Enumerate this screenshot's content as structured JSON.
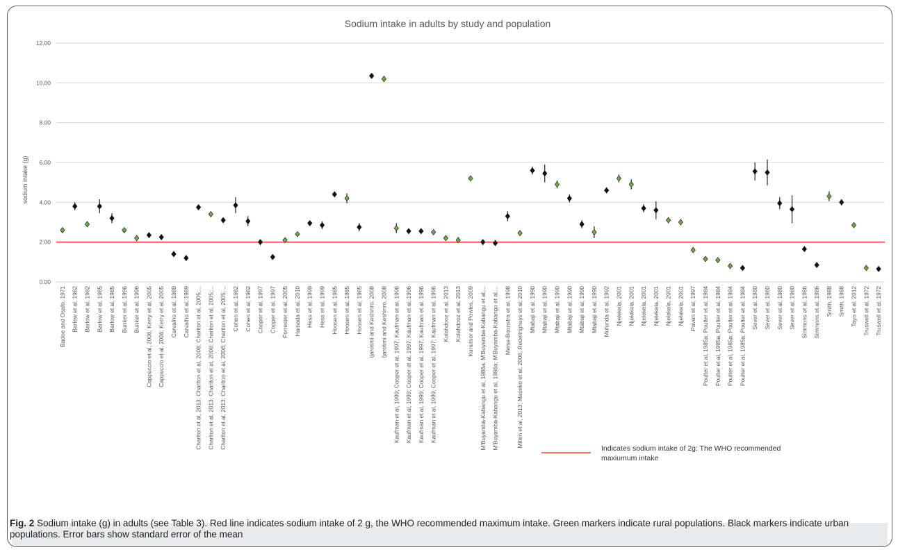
{
  "chart_data": {
    "type": "scatter",
    "title": "Sodium intake in adults by study and population",
    "ylabel": "sodium intake (g)",
    "xlabel": "",
    "ylim": [
      0,
      12
    ],
    "yticks": [
      "0.00",
      "2.00",
      "4.00",
      "6.00",
      "8.00",
      "10.00",
      "12.00"
    ],
    "grid": true,
    "reference_line": {
      "value": 2.0,
      "color": "#ff3b3b",
      "label": "Indicates sodium intake of 2g: The WHO recommended maxiumum intake"
    },
    "marker_colors": {
      "rural": "#70a84a",
      "urban": "#111111"
    },
    "points": [
      {
        "label": "Badoe and Osafo, 1971",
        "y": 2.6,
        "err": 0.05,
        "pop": "rural"
      },
      {
        "label": "Barlow et al, 1982",
        "y": 3.8,
        "err": 0.2,
        "pop": "urban"
      },
      {
        "label": "Barlow et al, 1982",
        "y": 2.9,
        "err": 0.1,
        "pop": "rural"
      },
      {
        "label": "Barlow et al, 1985",
        "y": 3.8,
        "err": 0.35,
        "pop": "urban"
      },
      {
        "label": "Barlow et al, 1985",
        "y": 3.2,
        "err": 0.25,
        "pop": "urban"
      },
      {
        "label": "Bunker et al, 1996",
        "y": 2.6,
        "err": 0.05,
        "pop": "rural"
      },
      {
        "label": "Bunker et al, 1996",
        "y": 2.2,
        "err": 0.15,
        "pop": "rural"
      },
      {
        "label": "Cappuccio et al, 2006; Kerry et al, 2005",
        "y": 2.35,
        "err": 0.05,
        "pop": "urban"
      },
      {
        "label": "Cappuccio et al, 2006; Kerry et al, 2005",
        "y": 2.25,
        "err": 0.05,
        "pop": "urban"
      },
      {
        "label": "Carvalho et al, 1989",
        "y": 1.4,
        "err": 0.03,
        "pop": "urban"
      },
      {
        "label": "Carvalho et al, 1989",
        "y": 1.2,
        "err": 0.03,
        "pop": "urban"
      },
      {
        "label": "Charlton et al, 2013; Charlton et al, 2008; Charlton et al, 2005;...",
        "y": 3.75,
        "err": 0.12,
        "pop": "urban"
      },
      {
        "label": "Charlton et al, 2013; Charlton et al, 2008; Charlton et al, 2005;...",
        "y": 3.4,
        "err": 0.05,
        "pop": "rural"
      },
      {
        "label": "Charlton et al, 2013; Charlton et al, 2008; Charlton et al, 2005;...",
        "y": 3.1,
        "err": 0.05,
        "pop": "urban"
      },
      {
        "label": "Cohen et al, 1982",
        "y": 3.85,
        "err": 0.4,
        "pop": "urban"
      },
      {
        "label": "Cohen et al, 1982",
        "y": 3.05,
        "err": 0.25,
        "pop": "urban"
      },
      {
        "label": "Cooper et al, 1997",
        "y": 2.0,
        "err": 0.03,
        "pop": "urban"
      },
      {
        "label": "Cooper et al, 1997",
        "y": 1.25,
        "err": 0.03,
        "pop": "urban"
      },
      {
        "label": "Forrester et al, 2005",
        "y": 2.1,
        "err": 0.1,
        "pop": "rural"
      },
      {
        "label": "Hamada et al, 2010",
        "y": 2.4,
        "err": 0.05,
        "pop": "rural"
      },
      {
        "label": "Hess et al, 1999",
        "y": 2.95,
        "err": 0.12,
        "pop": "urban"
      },
      {
        "label": "Hess et al, 1999",
        "y": 2.85,
        "err": 0.2,
        "pop": "urban"
      },
      {
        "label": "Hoosen et al, 1985",
        "y": 4.4,
        "err": 0.12,
        "pop": "urban"
      },
      {
        "label": "Hoosen et al, 1985",
        "y": 4.2,
        "err": 0.25,
        "pop": "rural"
      },
      {
        "label": "Hoosen et al, 1985",
        "y": 2.75,
        "err": 0.2,
        "pop": "urban"
      },
      {
        "label": "Ijarotimi and Keshinro, 2008",
        "y": 10.35,
        "err": 0.05,
        "pop": "urban"
      },
      {
        "label": "Ijarotimi and Keshinro, 2008",
        "y": 10.2,
        "err": 0.15,
        "pop": "rural"
      },
      {
        "label": "Kaufman et al, 1999; Cooper et al, 1997; Kaufman et al, 1996",
        "y": 2.7,
        "err": 0.25,
        "pop": "rural"
      },
      {
        "label": "Kaufman et al, 1999; Cooper et al, 1997; Kaufman et al, 1996",
        "y": 2.55,
        "err": 0.1,
        "pop": "urban"
      },
      {
        "label": "Kaufman et al, 1999; Cooper et al, 1997; Kaufman et al, 1996",
        "y": 2.55,
        "err": 0.05,
        "pop": "urban"
      },
      {
        "label": "Kaufman et al, 1999; Cooper et al, 1997; Kaufman et al, 1996",
        "y": 2.5,
        "err": 0.05,
        "pop": "rural"
      },
      {
        "label": "Kolahdooz et al, 2013",
        "y": 2.2,
        "err": 0.05,
        "pop": "rural"
      },
      {
        "label": "Kolahdooz et al, 2013",
        "y": 2.1,
        "err": 0.15,
        "pop": "rural"
      },
      {
        "label": "Kunutsor and Powles, 2009",
        "y": 5.2,
        "err": 0.05,
        "pop": "rural"
      },
      {
        "label": "M'Buyamba-Kabangu et al, 1986a; M'Buyamba-Kabangu et al,...",
        "y": 2.0,
        "err": 0.03,
        "pop": "urban"
      },
      {
        "label": "M'Buyamba-Kabangu et al, 1986a; M'Buyamba-Kabangu et al,...",
        "y": 1.95,
        "err": 0.03,
        "pop": "urban"
      },
      {
        "label": "Meise-Boonstra et al, 1998",
        "y": 3.3,
        "err": 0.25,
        "pop": "urban"
      },
      {
        "label": "Millen et al, 2013; Maseko et al, 2006; Redelinghuys et al, 2010",
        "y": 2.45,
        "err": 0.05,
        "pop": "rural"
      },
      {
        "label": "Mtabaji et al, 1990",
        "y": 5.6,
        "err": 0.2,
        "pop": "urban"
      },
      {
        "label": "Mtabaji et al, 1990",
        "y": 5.45,
        "err": 0.45,
        "pop": "urban"
      },
      {
        "label": "Mtabaji et al, 1990",
        "y": 4.9,
        "err": 0.2,
        "pop": "rural"
      },
      {
        "label": "Mtabaji et al, 1990",
        "y": 4.2,
        "err": 0.2,
        "pop": "urban"
      },
      {
        "label": "Mtabaji et al, 1990",
        "y": 2.9,
        "err": 0.2,
        "pop": "urban"
      },
      {
        "label": "Mtabaji et al, 1990",
        "y": 2.5,
        "err": 0.3,
        "pop": "rural"
      },
      {
        "label": "Mufunda et al, 1992",
        "y": 4.6,
        "err": 0.15,
        "pop": "urban"
      },
      {
        "label": "Njelekela, 2001",
        "y": 5.2,
        "err": 0.2,
        "pop": "rural"
      },
      {
        "label": "Njelekela, 2001",
        "y": 4.9,
        "err": 0.25,
        "pop": "rural"
      },
      {
        "label": "Njelekela, 2001",
        "y": 3.7,
        "err": 0.2,
        "pop": "urban"
      },
      {
        "label": "Njelekela, 2001",
        "y": 3.6,
        "err": 0.45,
        "pop": "urban"
      },
      {
        "label": "Njelekela, 2001",
        "y": 3.1,
        "err": 0.15,
        "pop": "rural"
      },
      {
        "label": "Njelekela, 2001",
        "y": 3.0,
        "err": 0.15,
        "pop": "rural"
      },
      {
        "label": "Pavan et al, 1997",
        "y": 1.6,
        "err": 0.05,
        "pop": "rural"
      },
      {
        "label": "Poulter et al, 1985a; Poulter et al, 1984",
        "y": 1.15,
        "err": 0.05,
        "pop": "rural"
      },
      {
        "label": "Poulter et al, 1985a; Poulter et al, 1984",
        "y": 1.1,
        "err": 0.05,
        "pop": "rural"
      },
      {
        "label": "Poulter et al, 1985a; Poulter et al, 1984",
        "y": 0.8,
        "err": 0.05,
        "pop": "rural"
      },
      {
        "label": "Poulter et al, 1985a; Poulter et al, 1984",
        "y": 0.7,
        "err": 0.03,
        "pop": "urban"
      },
      {
        "label": "Sever et al, 1980",
        "y": 5.55,
        "err": 0.45,
        "pop": "urban"
      },
      {
        "label": "Sever et al, 1980",
        "y": 5.5,
        "err": 0.65,
        "pop": "urban"
      },
      {
        "label": "Sever et al, 1980",
        "y": 3.95,
        "err": 0.3,
        "pop": "urban"
      },
      {
        "label": "Sever et al, 1980",
        "y": 3.65,
        "err": 0.7,
        "pop": "urban"
      },
      {
        "label": "Simmons et al, 1986",
        "y": 1.65,
        "err": 0.03,
        "pop": "urban"
      },
      {
        "label": "Simmons et al, 1986",
        "y": 0.85,
        "err": 0.03,
        "pop": "urban"
      },
      {
        "label": "Smith, 1988",
        "y": 4.3,
        "err": 0.25,
        "pop": "rural"
      },
      {
        "label": "Smith, 1988",
        "y": 4.0,
        "err": 0.15,
        "pop": "urban"
      },
      {
        "label": "Tayo et al, 2012",
        "y": 2.85,
        "err": 0.05,
        "pop": "rural"
      },
      {
        "label": "Truswell et al, 1972",
        "y": 0.7,
        "err": 0.05,
        "pop": "rural"
      },
      {
        "label": "Truswell et al, 1972",
        "y": 0.65,
        "err": 0.12,
        "pop": "urban"
      }
    ]
  },
  "caption": {
    "fig_label": "Fig. 2",
    "text": "Sodium intake (g) in adults (see Table 3). Red line indicates sodium intake of 2 g, the WHO recommended maximum intake. Green markers indicate rural populations. Black markers indicate urban populations. Error bars show standard error of the mean"
  }
}
